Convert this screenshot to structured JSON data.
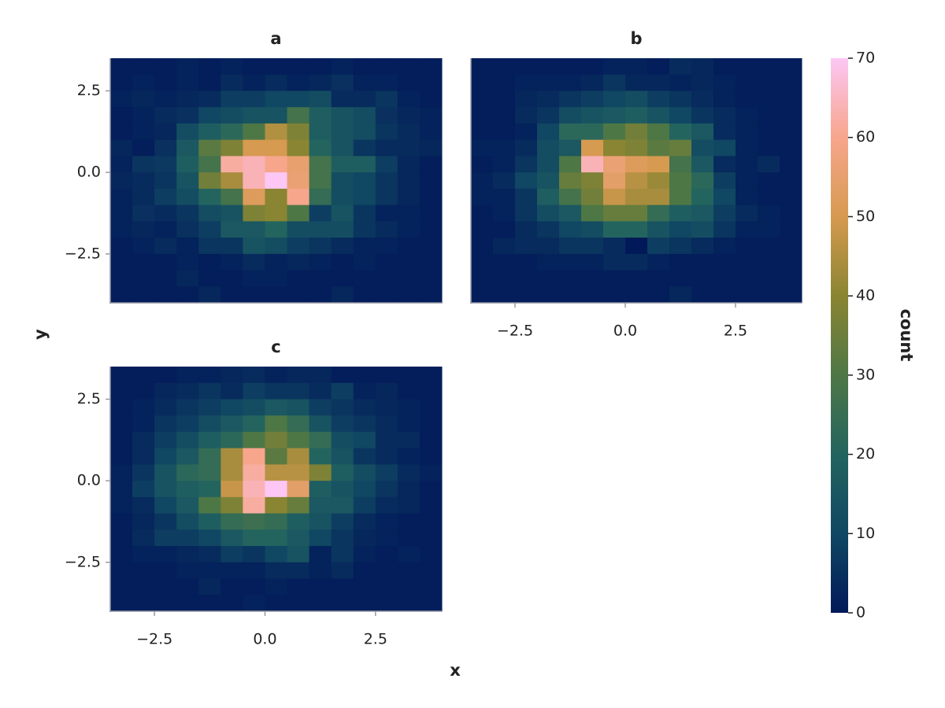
{
  "chart_data": {
    "type": "heatmap",
    "xlabel": "x",
    "ylabel": "y",
    "colorbar_label": "count",
    "xlim": [
      -3.5,
      4.0
    ],
    "ylim": [
      -4.0,
      3.5
    ],
    "xticks": [
      {
        "value": -2.5,
        "label": "−2.5"
      },
      {
        "value": 0,
        "label": "0.0"
      },
      {
        "value": 2.5,
        "label": "2.5"
      }
    ],
    "yticks": [
      {
        "value": -2.5,
        "label": "−2.5"
      },
      {
        "value": 0,
        "label": "0.0"
      },
      {
        "value": 2.5,
        "label": "2.5"
      }
    ],
    "clim": [
      0,
      70
    ],
    "cticks": [
      0,
      10,
      20,
      30,
      40,
      50,
      60,
      70
    ],
    "colormap": [
      "#011959",
      "#104763",
      "#23645f",
      "#4e7746",
      "#8a8532",
      "#d69a50",
      "#f7a68c",
      "#fcc7f4"
    ],
    "spine_color": "#9a9aa6",
    "xbins": [
      -3.5,
      -3.0,
      -2.5,
      -2.0,
      -1.5,
      -1.0,
      -0.5,
      0,
      0.5,
      1.0,
      1.5,
      2.0,
      2.5,
      3.0,
      3.5,
      4.0
    ],
    "ybins": [
      3.5,
      3.0,
      2.5,
      2.0,
      1.5,
      1.0,
      0.5,
      0,
      -0.5,
      -1.0,
      -1.5,
      -2.0,
      -2.5,
      -3.0,
      -3.5,
      -4.0
    ],
    "panels": [
      {
        "title": "a",
        "show_xticks": false,
        "show_yticks": true,
        "z": [
          [
            1,
            1,
            1,
            2,
            1,
            2,
            1,
            1,
            1,
            1,
            2,
            1,
            1,
            1,
            1
          ],
          [
            1,
            2,
            1,
            2,
            1,
            4,
            2,
            4,
            2,
            3,
            5,
            2,
            2,
            1,
            1
          ],
          [
            2,
            3,
            2,
            3,
            4,
            8,
            8,
            10,
            10,
            12,
            4,
            4,
            6,
            2,
            1
          ],
          [
            1,
            2,
            4,
            5,
            10,
            12,
            14,
            14,
            28,
            18,
            14,
            12,
            5,
            3,
            2
          ],
          [
            1,
            2,
            3,
            12,
            18,
            22,
            30,
            45,
            38,
            18,
            14,
            12,
            6,
            4,
            2
          ],
          [
            3,
            1,
            5,
            16,
            32,
            38,
            50,
            50,
            40,
            20,
            14,
            6,
            4,
            4,
            3
          ],
          [
            2,
            6,
            7,
            18,
            28,
            62,
            64,
            60,
            55,
            28,
            18,
            18,
            8,
            3,
            1
          ],
          [
            3,
            4,
            6,
            14,
            36,
            44,
            64,
            70,
            56,
            28,
            12,
            10,
            6,
            3,
            1
          ],
          [
            2,
            4,
            8,
            12,
            20,
            28,
            52,
            40,
            60,
            24,
            12,
            10,
            6,
            3,
            1
          ],
          [
            2,
            5,
            4,
            6,
            12,
            14,
            38,
            40,
            30,
            8,
            14,
            6,
            2,
            2,
            1
          ],
          [
            2,
            3,
            2,
            5,
            8,
            16,
            16,
            20,
            12,
            12,
            12,
            6,
            4,
            2,
            1
          ],
          [
            1,
            2,
            4,
            2,
            6,
            6,
            14,
            12,
            8,
            6,
            4,
            2,
            2,
            1,
            1
          ],
          [
            1,
            1,
            1,
            2,
            1,
            2,
            4,
            2,
            3,
            2,
            1,
            2,
            1,
            1,
            1
          ],
          [
            1,
            1,
            1,
            3,
            1,
            1,
            2,
            2,
            1,
            1,
            1,
            1,
            1,
            1,
            1
          ],
          [
            1,
            1,
            1,
            1,
            3,
            1,
            1,
            1,
            1,
            1,
            3,
            1,
            1,
            1,
            1
          ]
        ]
      },
      {
        "title": "b",
        "show_xticks": true,
        "show_yticks": false,
        "z": [
          [
            1,
            1,
            1,
            1,
            1,
            1,
            2,
            2,
            1,
            4,
            3,
            1,
            1,
            1,
            1
          ],
          [
            1,
            1,
            2,
            2,
            2,
            3,
            6,
            3,
            3,
            2,
            3,
            2,
            1,
            1,
            1
          ],
          [
            1,
            1,
            3,
            4,
            6,
            8,
            10,
            12,
            8,
            6,
            4,
            2,
            1,
            1,
            1
          ],
          [
            1,
            1,
            4,
            6,
            12,
            14,
            16,
            18,
            14,
            10,
            6,
            4,
            2,
            1,
            1
          ],
          [
            1,
            1,
            2,
            10,
            22,
            22,
            30,
            36,
            30,
            20,
            16,
            4,
            2,
            1,
            1
          ],
          [
            2,
            2,
            4,
            12,
            16,
            50,
            40,
            38,
            32,
            34,
            12,
            10,
            2,
            1,
            1
          ],
          [
            1,
            2,
            6,
            12,
            30,
            64,
            56,
            52,
            50,
            28,
            16,
            4,
            2,
            4,
            1
          ],
          [
            2,
            4,
            10,
            14,
            34,
            38,
            54,
            46,
            42,
            30,
            22,
            8,
            2,
            1,
            1
          ],
          [
            2,
            2,
            6,
            18,
            28,
            36,
            48,
            44,
            44,
            30,
            20,
            10,
            2,
            1,
            1
          ],
          [
            1,
            2,
            6,
            12,
            16,
            30,
            34,
            34,
            24,
            18,
            16,
            8,
            4,
            2,
            1
          ],
          [
            1,
            1,
            4,
            6,
            10,
            12,
            20,
            20,
            14,
            10,
            12,
            6,
            2,
            2,
            1
          ],
          [
            1,
            3,
            4,
            4,
            6,
            6,
            4,
            0,
            8,
            6,
            4,
            2,
            1,
            1,
            1
          ],
          [
            1,
            1,
            1,
            2,
            2,
            2,
            4,
            4,
            2,
            1,
            1,
            1,
            1,
            1,
            1
          ],
          [
            1,
            1,
            1,
            1,
            1,
            1,
            1,
            1,
            1,
            1,
            1,
            1,
            1,
            1,
            1
          ],
          [
            1,
            1,
            1,
            1,
            1,
            1,
            1,
            1,
            1,
            3,
            1,
            1,
            1,
            1,
            1
          ]
        ]
      },
      {
        "title": "c",
        "show_xticks": true,
        "show_yticks": true,
        "z": [
          [
            1,
            1,
            1,
            2,
            2,
            3,
            4,
            2,
            3,
            3,
            1,
            1,
            1,
            1,
            1
          ],
          [
            1,
            1,
            3,
            4,
            6,
            4,
            8,
            6,
            6,
            4,
            8,
            2,
            3,
            1,
            1
          ],
          [
            1,
            2,
            4,
            6,
            8,
            10,
            12,
            16,
            14,
            8,
            6,
            4,
            3,
            2,
            1
          ],
          [
            1,
            2,
            6,
            8,
            12,
            16,
            20,
            30,
            24,
            14,
            8,
            6,
            4,
            2,
            1
          ],
          [
            1,
            4,
            8,
            12,
            18,
            22,
            30,
            36,
            30,
            24,
            12,
            10,
            4,
            4,
            1
          ],
          [
            1,
            4,
            10,
            16,
            24,
            44,
            60,
            32,
            44,
            20,
            14,
            6,
            4,
            2,
            1
          ],
          [
            2,
            6,
            14,
            22,
            24,
            44,
            62,
            46,
            46,
            38,
            18,
            12,
            8,
            4,
            2
          ],
          [
            2,
            8,
            14,
            18,
            20,
            48,
            64,
            70,
            54,
            18,
            14,
            10,
            6,
            3,
            1
          ],
          [
            2,
            4,
            10,
            16,
            30,
            38,
            62,
            40,
            34,
            16,
            16,
            8,
            4,
            3,
            1
          ],
          [
            1,
            3,
            6,
            12,
            18,
            24,
            26,
            24,
            18,
            14,
            8,
            4,
            2,
            1,
            1
          ],
          [
            1,
            4,
            8,
            8,
            10,
            16,
            20,
            20,
            16,
            10,
            6,
            3,
            2,
            1,
            1
          ],
          [
            1,
            2,
            2,
            3,
            4,
            8,
            6,
            10,
            14,
            2,
            6,
            2,
            1,
            2,
            1
          ],
          [
            1,
            1,
            1,
            2,
            2,
            2,
            2,
            4,
            4,
            2,
            4,
            1,
            1,
            1,
            1
          ],
          [
            1,
            1,
            1,
            1,
            3,
            1,
            1,
            2,
            1,
            1,
            1,
            1,
            1,
            1,
            1
          ],
          [
            1,
            1,
            1,
            1,
            1,
            1,
            2,
            1,
            1,
            1,
            1,
            1,
            1,
            1,
            1
          ]
        ]
      }
    ]
  }
}
